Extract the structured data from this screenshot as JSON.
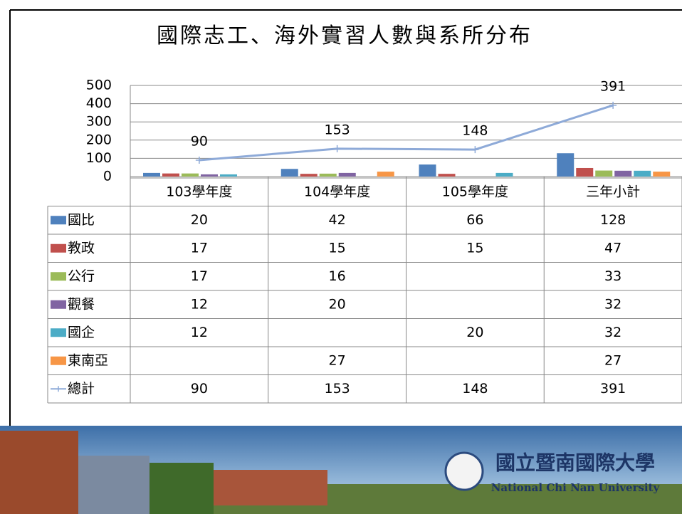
{
  "chart_data": {
    "type": "bar",
    "title": "國際志工、海外實習人數與系所分布",
    "categories": [
      "103學年度",
      "104學年度",
      "105學年度",
      "三年小計"
    ],
    "ylim": [
      0,
      500
    ],
    "yticks": [
      0,
      100,
      200,
      300,
      400,
      500
    ],
    "grid": true,
    "series": [
      {
        "name": "國比",
        "color": "#4f81bd",
        "values": [
          20,
          42,
          66,
          128
        ]
      },
      {
        "name": "教政",
        "color": "#c0504d",
        "values": [
          17,
          15,
          15,
          47
        ]
      },
      {
        "name": "公行",
        "color": "#9bbb59",
        "values": [
          17,
          16,
          null,
          33
        ]
      },
      {
        "name": "觀餐",
        "color": "#8064a2",
        "values": [
          12,
          20,
          null,
          32
        ]
      },
      {
        "name": "國企",
        "color": "#4bacc6",
        "values": [
          12,
          null,
          20,
          32
        ]
      },
      {
        "name": "東南亞",
        "color": "#f79646",
        "values": [
          null,
          27,
          null,
          27
        ]
      },
      {
        "name": "總計",
        "color": "#8eaad8",
        "type": "line",
        "values": [
          90,
          153,
          148,
          391
        ]
      }
    ]
  },
  "footer": {
    "name_zh": "國立暨南國際大學",
    "name_en": "National Chi Nan University"
  }
}
